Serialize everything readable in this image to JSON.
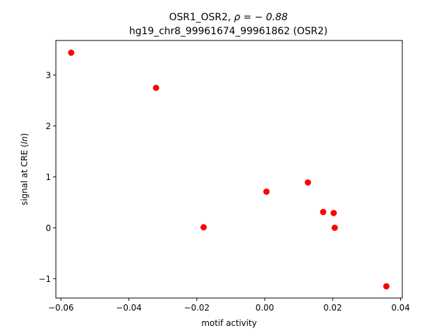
{
  "chart_data": {
    "type": "scatter",
    "title_line1_prefix": "OSR1_OSR2, ",
    "title_line1_rho": "ρ = − 0.88",
    "title_line2": "hg19_chr8_99961674_99961862 (OSR2)",
    "xlabel": "motif activity",
    "ylabel_prefix": "signal at CRE (",
    "ylabel_italic": "ln",
    "ylabel_suffix": ")",
    "xlim": [
      -0.0615,
      0.0405
    ],
    "ylim": [
      -1.38,
      3.68
    ],
    "x_ticks": [
      -0.06,
      -0.04,
      -0.02,
      0.0,
      0.02,
      0.04
    ],
    "x_tick_labels": [
      "−0.06",
      "−0.04",
      "−0.02",
      "0.00",
      "0.02",
      "0.04"
    ],
    "y_ticks": [
      -1,
      0,
      1,
      2,
      3
    ],
    "y_tick_labels": [
      "−1",
      "0",
      "1",
      "2",
      "3"
    ],
    "grid": false,
    "point_color": "#ff0000",
    "points": [
      {
        "x": -0.057,
        "y": 3.44
      },
      {
        "x": -0.032,
        "y": 2.75
      },
      {
        "x": -0.018,
        "y": 0.01
      },
      {
        "x": 0.0005,
        "y": 0.71
      },
      {
        "x": 0.0127,
        "y": 0.89
      },
      {
        "x": 0.0172,
        "y": 0.31
      },
      {
        "x": 0.0203,
        "y": 0.29
      },
      {
        "x": 0.0206,
        "y": 0.0
      },
      {
        "x": 0.0358,
        "y": -1.15
      }
    ]
  }
}
